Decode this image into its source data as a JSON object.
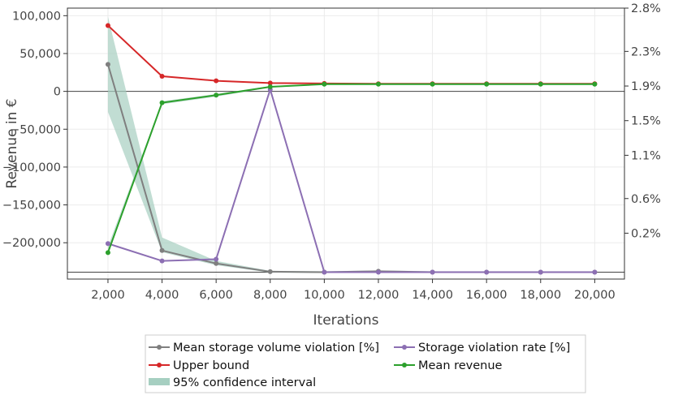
{
  "chart_data": {
    "type": "line",
    "xlabel": "Iterations",
    "ylabel": "Revenue in €",
    "x": [
      2000,
      4000,
      6000,
      8000,
      10000,
      12000,
      14000,
      16000,
      18000,
      20000
    ],
    "x_ticks": [
      2000,
      4000,
      6000,
      8000,
      10000,
      12000,
      14000,
      16000,
      18000,
      20000
    ],
    "x_tick_labels": [
      "2,000",
      "4,000",
      "6,000",
      "8,000",
      "10,000",
      "12,000",
      "14,000",
      "16,000",
      "18,000",
      "20,000"
    ],
    "xlim": [
      500,
      21100
    ],
    "y_left": {
      "lim": [
        -248000,
        110000
      ],
      "ticks": [
        100000,
        50000,
        0,
        -50000,
        -100000,
        -150000,
        -200000
      ],
      "tick_labels": [
        "100,000",
        "50,000",
        "0",
        "−50,000",
        "−100,000",
        "−150,000",
        "−200,000"
      ]
    },
    "y_right": {
      "lim": [
        -0.33,
        2.8
      ],
      "ticks": [
        2.8,
        2.3,
        1.9,
        1.5,
        1.1,
        0.6,
        0.2
      ],
      "tick_labels": [
        "2.8%",
        "2.3%",
        "1.9%",
        "1.5%",
        "1.1%",
        "0.6%",
        "0.2%"
      ]
    },
    "grid": true,
    "legend_position": "bottom",
    "series": [
      {
        "name": "Mean storage volume violation [%]",
        "axis": "right",
        "color": "#7f7f7f",
        "values": [
          2.15,
          0.0,
          -0.15,
          -0.245,
          -0.25,
          -0.24,
          -0.25,
          -0.25,
          -0.25,
          -0.25
        ],
        "ci_lower": [
          1.6,
          -0.02,
          -0.17,
          -0.255,
          -0.26,
          -0.25,
          -0.26,
          -0.26,
          -0.26,
          -0.26
        ],
        "ci_upper": [
          2.7,
          0.15,
          -0.12,
          -0.235,
          -0.24,
          -0.23,
          -0.24,
          -0.24,
          -0.24,
          -0.24
        ]
      },
      {
        "name": "Storage violation rate [%]",
        "axis": "right",
        "color": "#8c6fb3",
        "values": [
          0.08,
          -0.12,
          -0.1,
          1.86,
          -0.25,
          -0.25,
          -0.25,
          -0.25,
          -0.25,
          -0.25
        ]
      },
      {
        "name": "Upper bound",
        "axis": "left",
        "color": "#d62728",
        "values": [
          87000,
          20000,
          14000,
          11000,
          10500,
          10000,
          10000,
          10000,
          10000,
          10000
        ]
      },
      {
        "name": "Mean revenue",
        "axis": "left",
        "color": "#2ca02c",
        "values": [
          -213000,
          -15000,
          -5000,
          6000,
          9500,
          9500,
          9500,
          9500,
          9500,
          9500
        ],
        "ci_lower": [
          -216000,
          -17000,
          -7000,
          5000,
          9000,
          9000,
          9000,
          9000,
          9000,
          9000
        ],
        "ci_upper": [
          -205000,
          -13000,
          -3500,
          7000,
          10000,
          10000,
          10000,
          10000,
          10000,
          10000
        ]
      }
    ],
    "ci_legend_label": "95% confidence interval",
    "ci_color": "#a6cfc1"
  }
}
